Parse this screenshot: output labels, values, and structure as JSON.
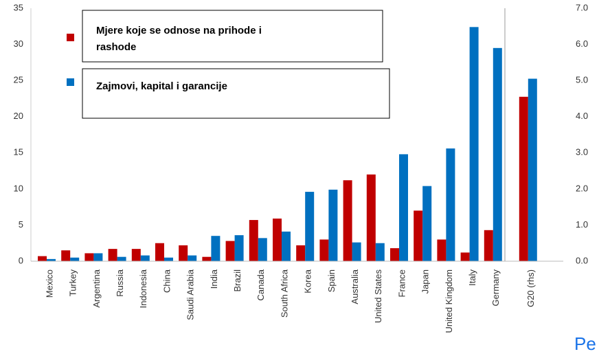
{
  "chart_data": {
    "type": "bar",
    "categories": [
      "Mexico",
      "Turkey",
      "Argentina",
      "Russia",
      "Indonesia",
      "China",
      "Saudi Arabia",
      "India",
      "Brazil",
      "Canada",
      "South Africa",
      "Korea",
      "Spain",
      "Australia",
      "United States",
      "France",
      "Japan",
      "United Kingdom",
      "Italy",
      "Germany",
      "G20 (rhs)"
    ],
    "series": [
      {
        "name": "Mjere koje se odnose na prihode i rashode",
        "color": "#c00000",
        "values": [
          0.7,
          1.5,
          1.1,
          1.7,
          1.7,
          2.5,
          2.2,
          0.6,
          2.8,
          5.7,
          5.9,
          2.2,
          3.0,
          11.2,
          12.0,
          1.8,
          7.0,
          3.0,
          1.2,
          4.3,
          null
        ],
        "y2_values": [
          null,
          null,
          null,
          null,
          null,
          null,
          null,
          null,
          null,
          null,
          null,
          null,
          null,
          null,
          null,
          null,
          null,
          null,
          null,
          null,
          4.55
        ]
      },
      {
        "name": "Zajmovi, kapital i garancije",
        "color": "#0070c0",
        "values": [
          0.3,
          0.5,
          1.1,
          0.6,
          0.8,
          0.5,
          0.8,
          3.5,
          3.6,
          3.2,
          4.1,
          9.6,
          9.9,
          2.6,
          2.5,
          14.8,
          10.4,
          15.6,
          32.4,
          29.5,
          null
        ],
        "y2_values": [
          null,
          null,
          null,
          null,
          null,
          null,
          null,
          null,
          null,
          null,
          null,
          null,
          null,
          null,
          null,
          null,
          null,
          null,
          null,
          null,
          5.05
        ]
      }
    ],
    "ylim": [
      0,
      35
    ],
    "yticks": [
      0,
      5,
      10,
      15,
      20,
      25,
      30,
      35
    ],
    "y2lim": [
      0,
      7
    ],
    "y2ticks": [
      {
        "value": 0,
        "label": "0.0"
      },
      {
        "value": 1,
        "label": "1.0"
      },
      {
        "value": 2,
        "label": "2.0"
      },
      {
        "value": 3,
        "label": "3.0"
      },
      {
        "value": 4,
        "label": "4.0"
      },
      {
        "value": 5,
        "label": "5.0"
      },
      {
        "value": 6,
        "label": "6.0"
      },
      {
        "value": 7,
        "label": "7.0"
      }
    ],
    "footer_text": "Pe"
  }
}
